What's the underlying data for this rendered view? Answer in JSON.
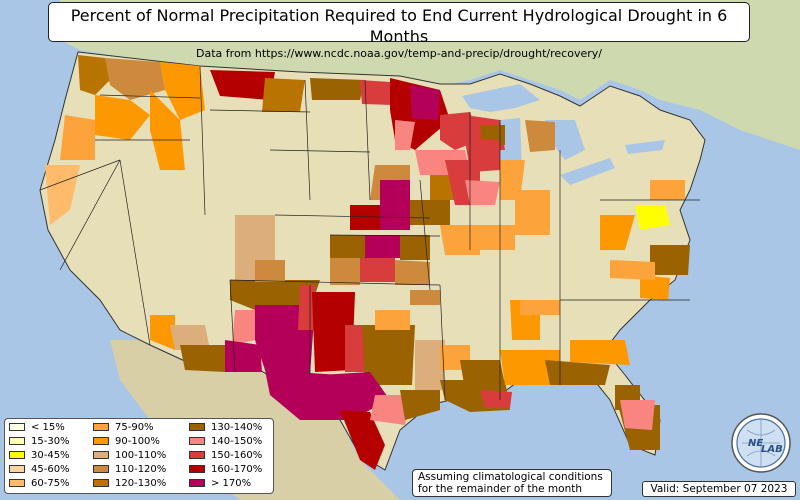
{
  "title": {
    "main": "Percent of Normal Precipitation Required to End Current Hydrological Drought in 6 Months",
    "sub": "Data from https://www.ncdc.noaa.gov/temp-and-precip/drought/recovery/"
  },
  "legend": {
    "items": [
      {
        "label": "< 15%",
        "color": "#ffffe6"
      },
      {
        "label": "15-30%",
        "color": "#ffffb3"
      },
      {
        "label": "30-45%",
        "color": "#ffff00"
      },
      {
        "label": "45-60%",
        "color": "#fdd49e"
      },
      {
        "label": "60-75%",
        "color": "#fdbb6b"
      },
      {
        "label": "75-90%",
        "color": "#fda33c"
      },
      {
        "label": "90-100%",
        "color": "#fe9800"
      },
      {
        "label": "100-110%",
        "color": "#dcae7c"
      },
      {
        "label": "110-120%",
        "color": "#cd8a3d"
      },
      {
        "label": "120-130%",
        "color": "#b97301"
      },
      {
        "label": "130-140%",
        "color": "#9a6200"
      },
      {
        "label": "140-150%",
        "color": "#f88580"
      },
      {
        "label": "150-160%",
        "color": "#d93c3c"
      },
      {
        "label": "160-170%",
        "color": "#b50000"
      },
      {
        "label": "> 170%",
        "color": "#b5005a"
      }
    ]
  },
  "notes": {
    "assumption_line1": "Assuming climatological conditions",
    "assumption_line2": "for the remainder of the month",
    "valid": "Valid: September 07 2023"
  },
  "logo": {
    "text_left": "NE",
    "text_right": "LAB",
    "icon": "globe-logo-icon"
  },
  "colors": {
    "ocean": "#a9c6e6",
    "land": "#e6dfb8",
    "canada": "#cfd9b0",
    "mexico": "#d8cfa6"
  }
}
